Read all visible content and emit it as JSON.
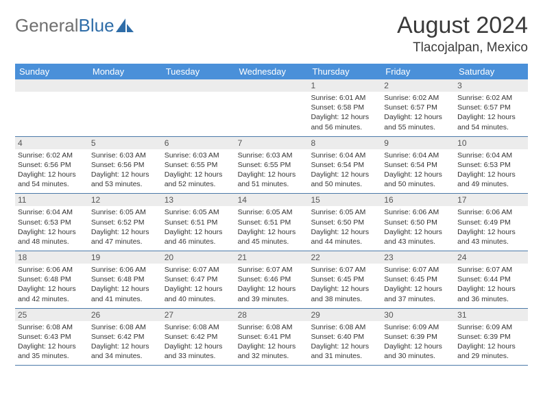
{
  "brand": {
    "part1": "General",
    "part2": "Blue"
  },
  "title": {
    "month": "August 2024",
    "location": "Tlacojalpan, Mexico"
  },
  "colors": {
    "header_bg": "#4a90d9",
    "header_text": "#ffffff",
    "daynum_bg": "#ececec",
    "border": "#4a78a8",
    "title_color": "#3a3a3a",
    "logo_gray": "#6f6f6f",
    "logo_blue": "#2f6da8",
    "cell_text": "#333333"
  },
  "dayNames": [
    "Sunday",
    "Monday",
    "Tuesday",
    "Wednesday",
    "Thursday",
    "Friday",
    "Saturday"
  ],
  "weeks": [
    [
      {
        "n": "",
        "sunrise": "",
        "sunset": "",
        "daylight": ""
      },
      {
        "n": "",
        "sunrise": "",
        "sunset": "",
        "daylight": ""
      },
      {
        "n": "",
        "sunrise": "",
        "sunset": "",
        "daylight": ""
      },
      {
        "n": "",
        "sunrise": "",
        "sunset": "",
        "daylight": ""
      },
      {
        "n": "1",
        "sunrise": "Sunrise: 6:01 AM",
        "sunset": "Sunset: 6:58 PM",
        "daylight": "Daylight: 12 hours and 56 minutes."
      },
      {
        "n": "2",
        "sunrise": "Sunrise: 6:02 AM",
        "sunset": "Sunset: 6:57 PM",
        "daylight": "Daylight: 12 hours and 55 minutes."
      },
      {
        "n": "3",
        "sunrise": "Sunrise: 6:02 AM",
        "sunset": "Sunset: 6:57 PM",
        "daylight": "Daylight: 12 hours and 54 minutes."
      }
    ],
    [
      {
        "n": "4",
        "sunrise": "Sunrise: 6:02 AM",
        "sunset": "Sunset: 6:56 PM",
        "daylight": "Daylight: 12 hours and 54 minutes."
      },
      {
        "n": "5",
        "sunrise": "Sunrise: 6:03 AM",
        "sunset": "Sunset: 6:56 PM",
        "daylight": "Daylight: 12 hours and 53 minutes."
      },
      {
        "n": "6",
        "sunrise": "Sunrise: 6:03 AM",
        "sunset": "Sunset: 6:55 PM",
        "daylight": "Daylight: 12 hours and 52 minutes."
      },
      {
        "n": "7",
        "sunrise": "Sunrise: 6:03 AM",
        "sunset": "Sunset: 6:55 PM",
        "daylight": "Daylight: 12 hours and 51 minutes."
      },
      {
        "n": "8",
        "sunrise": "Sunrise: 6:04 AM",
        "sunset": "Sunset: 6:54 PM",
        "daylight": "Daylight: 12 hours and 50 minutes."
      },
      {
        "n": "9",
        "sunrise": "Sunrise: 6:04 AM",
        "sunset": "Sunset: 6:54 PM",
        "daylight": "Daylight: 12 hours and 50 minutes."
      },
      {
        "n": "10",
        "sunrise": "Sunrise: 6:04 AM",
        "sunset": "Sunset: 6:53 PM",
        "daylight": "Daylight: 12 hours and 49 minutes."
      }
    ],
    [
      {
        "n": "11",
        "sunrise": "Sunrise: 6:04 AM",
        "sunset": "Sunset: 6:53 PM",
        "daylight": "Daylight: 12 hours and 48 minutes."
      },
      {
        "n": "12",
        "sunrise": "Sunrise: 6:05 AM",
        "sunset": "Sunset: 6:52 PM",
        "daylight": "Daylight: 12 hours and 47 minutes."
      },
      {
        "n": "13",
        "sunrise": "Sunrise: 6:05 AM",
        "sunset": "Sunset: 6:51 PM",
        "daylight": "Daylight: 12 hours and 46 minutes."
      },
      {
        "n": "14",
        "sunrise": "Sunrise: 6:05 AM",
        "sunset": "Sunset: 6:51 PM",
        "daylight": "Daylight: 12 hours and 45 minutes."
      },
      {
        "n": "15",
        "sunrise": "Sunrise: 6:05 AM",
        "sunset": "Sunset: 6:50 PM",
        "daylight": "Daylight: 12 hours and 44 minutes."
      },
      {
        "n": "16",
        "sunrise": "Sunrise: 6:06 AM",
        "sunset": "Sunset: 6:50 PM",
        "daylight": "Daylight: 12 hours and 43 minutes."
      },
      {
        "n": "17",
        "sunrise": "Sunrise: 6:06 AM",
        "sunset": "Sunset: 6:49 PM",
        "daylight": "Daylight: 12 hours and 43 minutes."
      }
    ],
    [
      {
        "n": "18",
        "sunrise": "Sunrise: 6:06 AM",
        "sunset": "Sunset: 6:48 PM",
        "daylight": "Daylight: 12 hours and 42 minutes."
      },
      {
        "n": "19",
        "sunrise": "Sunrise: 6:06 AM",
        "sunset": "Sunset: 6:48 PM",
        "daylight": "Daylight: 12 hours and 41 minutes."
      },
      {
        "n": "20",
        "sunrise": "Sunrise: 6:07 AM",
        "sunset": "Sunset: 6:47 PM",
        "daylight": "Daylight: 12 hours and 40 minutes."
      },
      {
        "n": "21",
        "sunrise": "Sunrise: 6:07 AM",
        "sunset": "Sunset: 6:46 PM",
        "daylight": "Daylight: 12 hours and 39 minutes."
      },
      {
        "n": "22",
        "sunrise": "Sunrise: 6:07 AM",
        "sunset": "Sunset: 6:45 PM",
        "daylight": "Daylight: 12 hours and 38 minutes."
      },
      {
        "n": "23",
        "sunrise": "Sunrise: 6:07 AM",
        "sunset": "Sunset: 6:45 PM",
        "daylight": "Daylight: 12 hours and 37 minutes."
      },
      {
        "n": "24",
        "sunrise": "Sunrise: 6:07 AM",
        "sunset": "Sunset: 6:44 PM",
        "daylight": "Daylight: 12 hours and 36 minutes."
      }
    ],
    [
      {
        "n": "25",
        "sunrise": "Sunrise: 6:08 AM",
        "sunset": "Sunset: 6:43 PM",
        "daylight": "Daylight: 12 hours and 35 minutes."
      },
      {
        "n": "26",
        "sunrise": "Sunrise: 6:08 AM",
        "sunset": "Sunset: 6:42 PM",
        "daylight": "Daylight: 12 hours and 34 minutes."
      },
      {
        "n": "27",
        "sunrise": "Sunrise: 6:08 AM",
        "sunset": "Sunset: 6:42 PM",
        "daylight": "Daylight: 12 hours and 33 minutes."
      },
      {
        "n": "28",
        "sunrise": "Sunrise: 6:08 AM",
        "sunset": "Sunset: 6:41 PM",
        "daylight": "Daylight: 12 hours and 32 minutes."
      },
      {
        "n": "29",
        "sunrise": "Sunrise: 6:08 AM",
        "sunset": "Sunset: 6:40 PM",
        "daylight": "Daylight: 12 hours and 31 minutes."
      },
      {
        "n": "30",
        "sunrise": "Sunrise: 6:09 AM",
        "sunset": "Sunset: 6:39 PM",
        "daylight": "Daylight: 12 hours and 30 minutes."
      },
      {
        "n": "31",
        "sunrise": "Sunrise: 6:09 AM",
        "sunset": "Sunset: 6:39 PM",
        "daylight": "Daylight: 12 hours and 29 minutes."
      }
    ]
  ]
}
